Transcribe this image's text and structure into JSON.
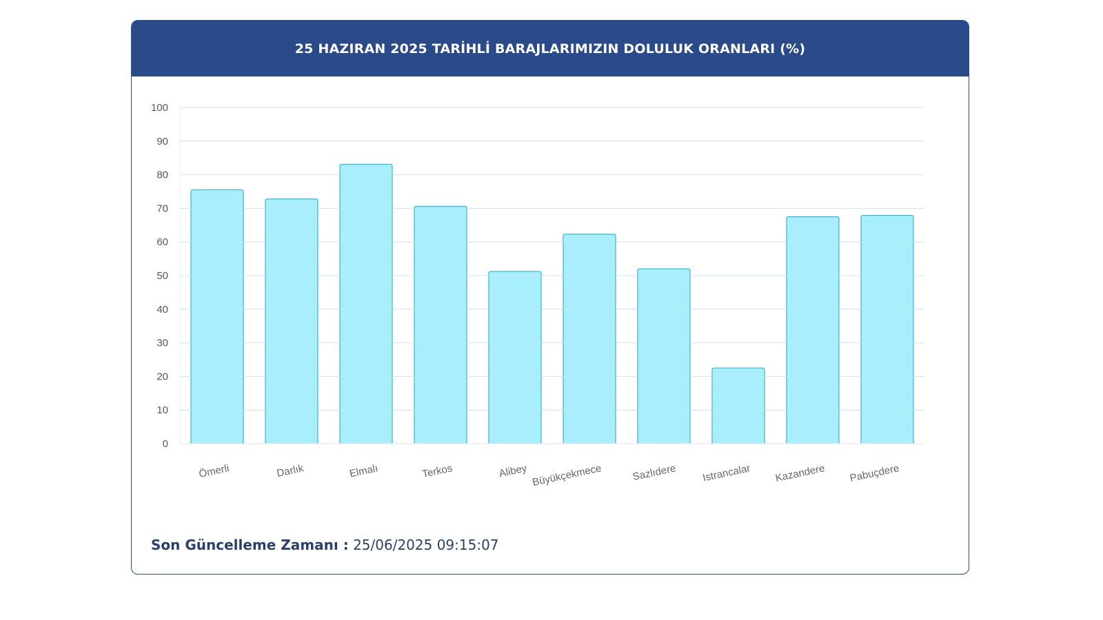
{
  "header": {
    "title": "25 HAZIRAN 2025 TARİHLİ BARAJLARIMIZIN DOLULUK ORANLARI (%)"
  },
  "footer": {
    "label": "Son Güncelleme Zamanı :",
    "value": "25/06/2025 09:15:07"
  },
  "colors": {
    "header": "#2b4a8a",
    "bar_fill": "#a8eefc",
    "bar_stroke": "#3fb2cc",
    "grid": "#cfe6f0"
  },
  "chart_data": {
    "type": "bar",
    "title": "25 HAZIRAN 2025 TARİHLİ BARAJLARIMIZIN DOLULUK ORANLARI (%)",
    "xlabel": "",
    "ylabel": "",
    "ylim": [
      0,
      100
    ],
    "yticks": [
      0,
      10,
      20,
      30,
      40,
      50,
      60,
      70,
      80,
      90,
      100
    ],
    "grid": true,
    "categories": [
      "Ömerli",
      "Darlık",
      "Elmalı",
      "Terkos",
      "Alibey",
      "Büyükçekmece",
      "Sazlıdere",
      "Istrancalar",
      "Kazandere",
      "Pabuçdere"
    ],
    "values": [
      75.5,
      72.8,
      83.1,
      70.6,
      51.2,
      62.3,
      52.0,
      22.5,
      67.5,
      67.9
    ]
  }
}
